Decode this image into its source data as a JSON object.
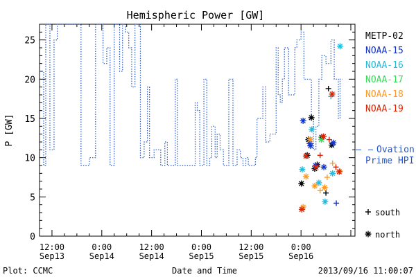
{
  "chart_data": {
    "type": "line",
    "title": "Hemispheric Power [GW]",
    "ylabel": "P [GW]",
    "xlabel": "Date and Time",
    "ylim": [
      0,
      27
    ],
    "y_ticks": [
      0,
      5,
      10,
      15,
      20,
      25
    ],
    "xlim_hours": [
      -15,
      61
    ],
    "x_ticks": [
      {
        "t": -12,
        "line1": "12:00",
        "line2": "Sep13"
      },
      {
        "t": 0,
        "line1": "0:00",
        "line2": "Sep14"
      },
      {
        "t": 12,
        "line1": "12:00",
        "line2": "Sep14"
      },
      {
        "t": 24,
        "line1": "0:00",
        "line2": "Sep15"
      },
      {
        "t": 36,
        "line1": "12:00",
        "line2": "Sep15"
      },
      {
        "t": 48,
        "line1": "0:00",
        "line2": "Sep16"
      }
    ],
    "x_note": "t = hours relative to 2013-09-14 00:00",
    "ovation": {
      "label_line1": "Ovation",
      "label_line2": "Prime HPI",
      "color": "#2255cc",
      "value": 11,
      "steps": [
        [
          -15,
          21
        ],
        [
          -14,
          9
        ],
        [
          -13.5,
          27
        ],
        [
          -12.5,
          11
        ],
        [
          -11.5,
          25
        ],
        [
          -10.7,
          27
        ],
        [
          -5,
          9
        ],
        [
          -3,
          10
        ],
        [
          -1.5,
          27
        ],
        [
          0.3,
          22
        ],
        [
          1.2,
          24
        ],
        [
          2,
          9
        ],
        [
          3,
          27
        ],
        [
          4.3,
          21
        ],
        [
          5,
          27
        ],
        [
          5.7,
          26
        ],
        [
          6.5,
          24
        ],
        [
          7.2,
          19
        ],
        [
          8,
          27
        ],
        [
          9.3,
          10
        ],
        [
          10.2,
          12
        ],
        [
          11,
          19
        ],
        [
          11.5,
          10
        ],
        [
          12.6,
          11
        ],
        [
          14.2,
          9
        ],
        [
          15.2,
          12
        ],
        [
          15.8,
          9
        ],
        [
          17.7,
          20
        ],
        [
          18.2,
          9
        ],
        [
          22.5,
          17
        ],
        [
          23,
          16
        ],
        [
          23.6,
          9
        ],
        [
          24.6,
          20
        ],
        [
          25.3,
          9
        ],
        [
          26,
          10
        ],
        [
          26.5,
          14
        ],
        [
          27.3,
          10
        ],
        [
          27.8,
          13
        ],
        [
          28.5,
          11
        ],
        [
          29.3,
          9
        ],
        [
          30.6,
          20
        ],
        [
          31.6,
          9
        ],
        [
          32.6,
          11
        ],
        [
          33.4,
          10
        ],
        [
          34,
          9
        ],
        [
          34.7,
          10
        ],
        [
          35.3,
          9
        ],
        [
          37,
          10
        ],
        [
          37.4,
          15
        ],
        [
          38.8,
          19
        ],
        [
          39.5,
          12
        ],
        [
          40.5,
          13
        ],
        [
          42,
          24
        ],
        [
          42.5,
          18
        ],
        [
          43,
          17
        ],
        [
          43.5,
          20
        ],
        [
          44,
          24
        ],
        [
          45,
          18
        ],
        [
          46.5,
          24
        ],
        [
          47,
          25
        ],
        [
          48,
          26
        ],
        [
          48.7,
          20
        ],
        [
          50.5,
          15
        ],
        [
          51,
          11
        ],
        [
          51.6,
          14
        ],
        [
          52.3,
          20
        ],
        [
          53,
          23
        ],
        [
          54,
          22
        ],
        [
          55.2,
          25
        ],
        [
          56,
          20
        ],
        [
          57,
          15
        ],
        [
          57.4,
          20
        ]
      ],
      "t_end": 58
    },
    "series": [
      {
        "name": "METP-02",
        "color": "#000000",
        "points": [
          [
            48.1,
            6.7,
            "north"
          ],
          [
            49.5,
            10.3,
            "north"
          ],
          [
            50.5,
            15.1,
            "north"
          ],
          [
            49.8,
            12.3,
            "north"
          ],
          [
            51.9,
            9.1,
            "north"
          ],
          [
            54,
            5.5,
            "south"
          ],
          [
            54.6,
            18.8,
            "south"
          ],
          [
            55.4,
            11.6,
            "north"
          ],
          [
            53,
            12.6,
            "north"
          ],
          [
            51.3,
            8.6,
            "north"
          ]
        ]
      },
      {
        "name": "NOAA-15",
        "color": "#1133cc",
        "points": [
          [
            48.5,
            14.7,
            "north"
          ],
          [
            50.3,
            11.5,
            "north"
          ],
          [
            51.5,
            9.0,
            "north"
          ],
          [
            53.5,
            8.8,
            "north"
          ],
          [
            55.8,
            11.9,
            "north"
          ],
          [
            56.5,
            4.2,
            "south"
          ],
          [
            50.1,
            11.8,
            "north"
          ]
        ]
      },
      {
        "name": "NOAA-16",
        "color": "#22bbdd",
        "points": [
          [
            48.3,
            8.5,
            "north"
          ],
          [
            50.6,
            13.6,
            "north"
          ],
          [
            52.3,
            6.8,
            "north"
          ],
          [
            53.8,
            4.4,
            "north"
          ],
          [
            55.2,
            17.8,
            "south"
          ],
          [
            57.4,
            24.2,
            "north"
          ],
          [
            55.6,
            8.0,
            "north"
          ]
        ]
      },
      {
        "name": "NOAA-17",
        "color": "#33dd55",
        "points": [
          [
            52.9,
            12.3,
            "north"
          ]
        ]
      },
      {
        "name": "NOAA-18",
        "color": "#ff9922",
        "points": [
          [
            48.5,
            3.7,
            "north"
          ],
          [
            50.2,
            12.3,
            "north"
          ],
          [
            51.3,
            6.4,
            "north"
          ],
          [
            52.6,
            5.8,
            "south"
          ],
          [
            53.7,
            6.2,
            "north"
          ],
          [
            54.3,
            7.5,
            "south"
          ],
          [
            55.6,
            9.3,
            "south"
          ],
          [
            57.4,
            8.3,
            "south"
          ],
          [
            49.2,
            7.6,
            "north"
          ]
        ]
      },
      {
        "name": "NOAA-19",
        "color": "#dd2200",
        "points": [
          [
            48.2,
            3.4,
            "north"
          ],
          [
            49.2,
            10.2,
            "north"
          ],
          [
            51.6,
            8.8,
            "north"
          ],
          [
            52.6,
            10.3,
            "south"
          ],
          [
            53.4,
            12.7,
            "north"
          ],
          [
            55.5,
            18.1,
            "north"
          ],
          [
            56.4,
            8.8,
            "south"
          ],
          [
            57.2,
            8.2,
            "north"
          ],
          [
            54.8,
            12.3,
            "south"
          ]
        ]
      }
    ],
    "marker_legend": [
      {
        "symbol": "+",
        "label": "south"
      },
      {
        "symbol": "*",
        "label": "north"
      }
    ]
  },
  "footer": {
    "left": "Plot: CCMC",
    "right": "2013/09/16 11:00:07"
  }
}
